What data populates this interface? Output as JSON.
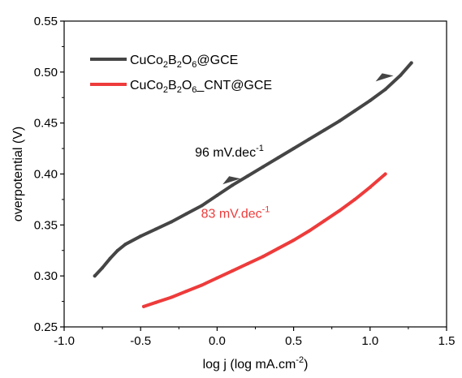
{
  "chart_data": {
    "type": "line",
    "title": "",
    "xlabel": "log j (log mA.cm",
    "xlabel_sup": "-2",
    "xlabel_tail": ")",
    "ylabel": "overpotential (V)",
    "xlim": [
      -1.0,
      1.5
    ],
    "ylim": [
      0.25,
      0.55
    ],
    "xticks": [
      -1.0,
      -0.5,
      0.0,
      0.5,
      1.0,
      1.5
    ],
    "yticks": [
      0.25,
      0.3,
      0.35,
      0.4,
      0.45,
      0.5,
      0.55
    ],
    "xtick_labels": [
      "-1.0",
      "-0.5",
      "0.0",
      "0.5",
      "1.0",
      "1.5"
    ],
    "ytick_labels": [
      "0.25",
      "0.30",
      "0.35",
      "0.40",
      "0.45",
      "0.50",
      "0.55"
    ],
    "grid": false,
    "legend_position": "top-left",
    "series": [
      {
        "name": "CuCo2B2O6@GCE",
        "legend_parts": [
          "CuCo",
          "2",
          "B",
          "2",
          "O",
          "6",
          "@GCE"
        ],
        "color": "#454545",
        "x": [
          -0.8,
          -0.75,
          -0.7,
          -0.65,
          -0.6,
          -0.5,
          -0.4,
          -0.3,
          -0.2,
          -0.1,
          0.0,
          0.1,
          0.2,
          0.3,
          0.4,
          0.5,
          0.6,
          0.7,
          0.8,
          0.9,
          1.0,
          1.1,
          1.2,
          1.27
        ],
        "y": [
          0.3,
          0.308,
          0.317,
          0.325,
          0.331,
          0.339,
          0.346,
          0.353,
          0.361,
          0.369,
          0.379,
          0.389,
          0.398,
          0.407,
          0.416,
          0.425,
          0.434,
          0.443,
          0.452,
          0.462,
          0.472,
          0.483,
          0.497,
          0.509
        ]
      },
      {
        "name": "CuCo2B2O6_CNT@GCE",
        "legend_parts": [
          "CuCo",
          "2",
          "B",
          "2",
          "O",
          "6",
          "_CNT@GCE"
        ],
        "color": "#ee3b3b",
        "x": [
          -0.48,
          -0.4,
          -0.3,
          -0.2,
          -0.1,
          0.0,
          0.1,
          0.2,
          0.3,
          0.4,
          0.5,
          0.6,
          0.7,
          0.8,
          0.9,
          1.0,
          1.1
        ],
        "y": [
          0.27,
          0.274,
          0.279,
          0.285,
          0.291,
          0.298,
          0.305,
          0.312,
          0.319,
          0.327,
          0.335,
          0.344,
          0.354,
          0.364,
          0.375,
          0.387,
          0.4
        ]
      }
    ],
    "annotations": [
      {
        "text": "96 mV.dec",
        "sup": "-1",
        "color": "#000000",
        "x": 0.08,
        "y": 0.417
      },
      {
        "text": "83 mV.dec",
        "sup": "-1",
        "color": "#ee3b3b",
        "x": 0.12,
        "y": 0.357
      }
    ],
    "arrows": [
      {
        "x": 0.1,
        "y": 0.393,
        "color": "#454545"
      },
      {
        "x": 1.1,
        "y": 0.494,
        "color": "#454545"
      }
    ]
  }
}
